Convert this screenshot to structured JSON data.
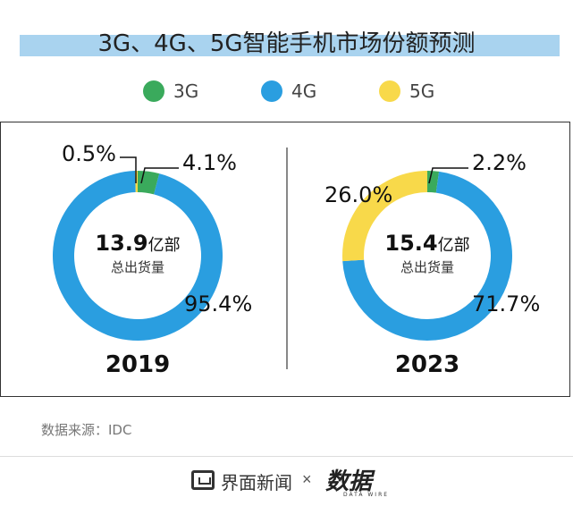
{
  "header": {
    "title": "3G、4G、5G智能手机市场份额预测"
  },
  "legend": [
    {
      "label": "3G",
      "color": "#3aaa5c"
    },
    {
      "label": "4G",
      "color": "#2a9ee0"
    },
    {
      "label": "5G",
      "color": "#f8d94a"
    }
  ],
  "chart_data": [
    {
      "type": "pie",
      "year": "2019",
      "center_value": "13.9",
      "center_unit": "亿部",
      "center_caption": "总出货量",
      "slices": [
        {
          "name": "3G",
          "value": 4.1,
          "label": "4.1%",
          "color": "#3aaa5c"
        },
        {
          "name": "4G",
          "value": 95.4,
          "label": "95.4%",
          "color": "#2a9ee0"
        },
        {
          "name": "5G",
          "value": 0.5,
          "label": "0.5%",
          "color": "#f8d94a"
        }
      ]
    },
    {
      "type": "pie",
      "year": "2023",
      "center_value": "15.4",
      "center_unit": "亿部",
      "center_caption": "总出货量",
      "slices": [
        {
          "name": "3G",
          "value": 2.2,
          "label": "2.2%",
          "color": "#3aaa5c"
        },
        {
          "name": "4G",
          "value": 71.7,
          "label": "71.7%",
          "color": "#2a9ee0"
        },
        {
          "name": "5G",
          "value": 26.0,
          "label": "26.0%",
          "color": "#f8d94a"
        }
      ]
    }
  ],
  "footer": {
    "source": "数据来源：IDC",
    "brand_name": "界面新闻",
    "brand_separator": "×",
    "brand_mark": "数据",
    "brand_sub": "DATA WIRE"
  }
}
